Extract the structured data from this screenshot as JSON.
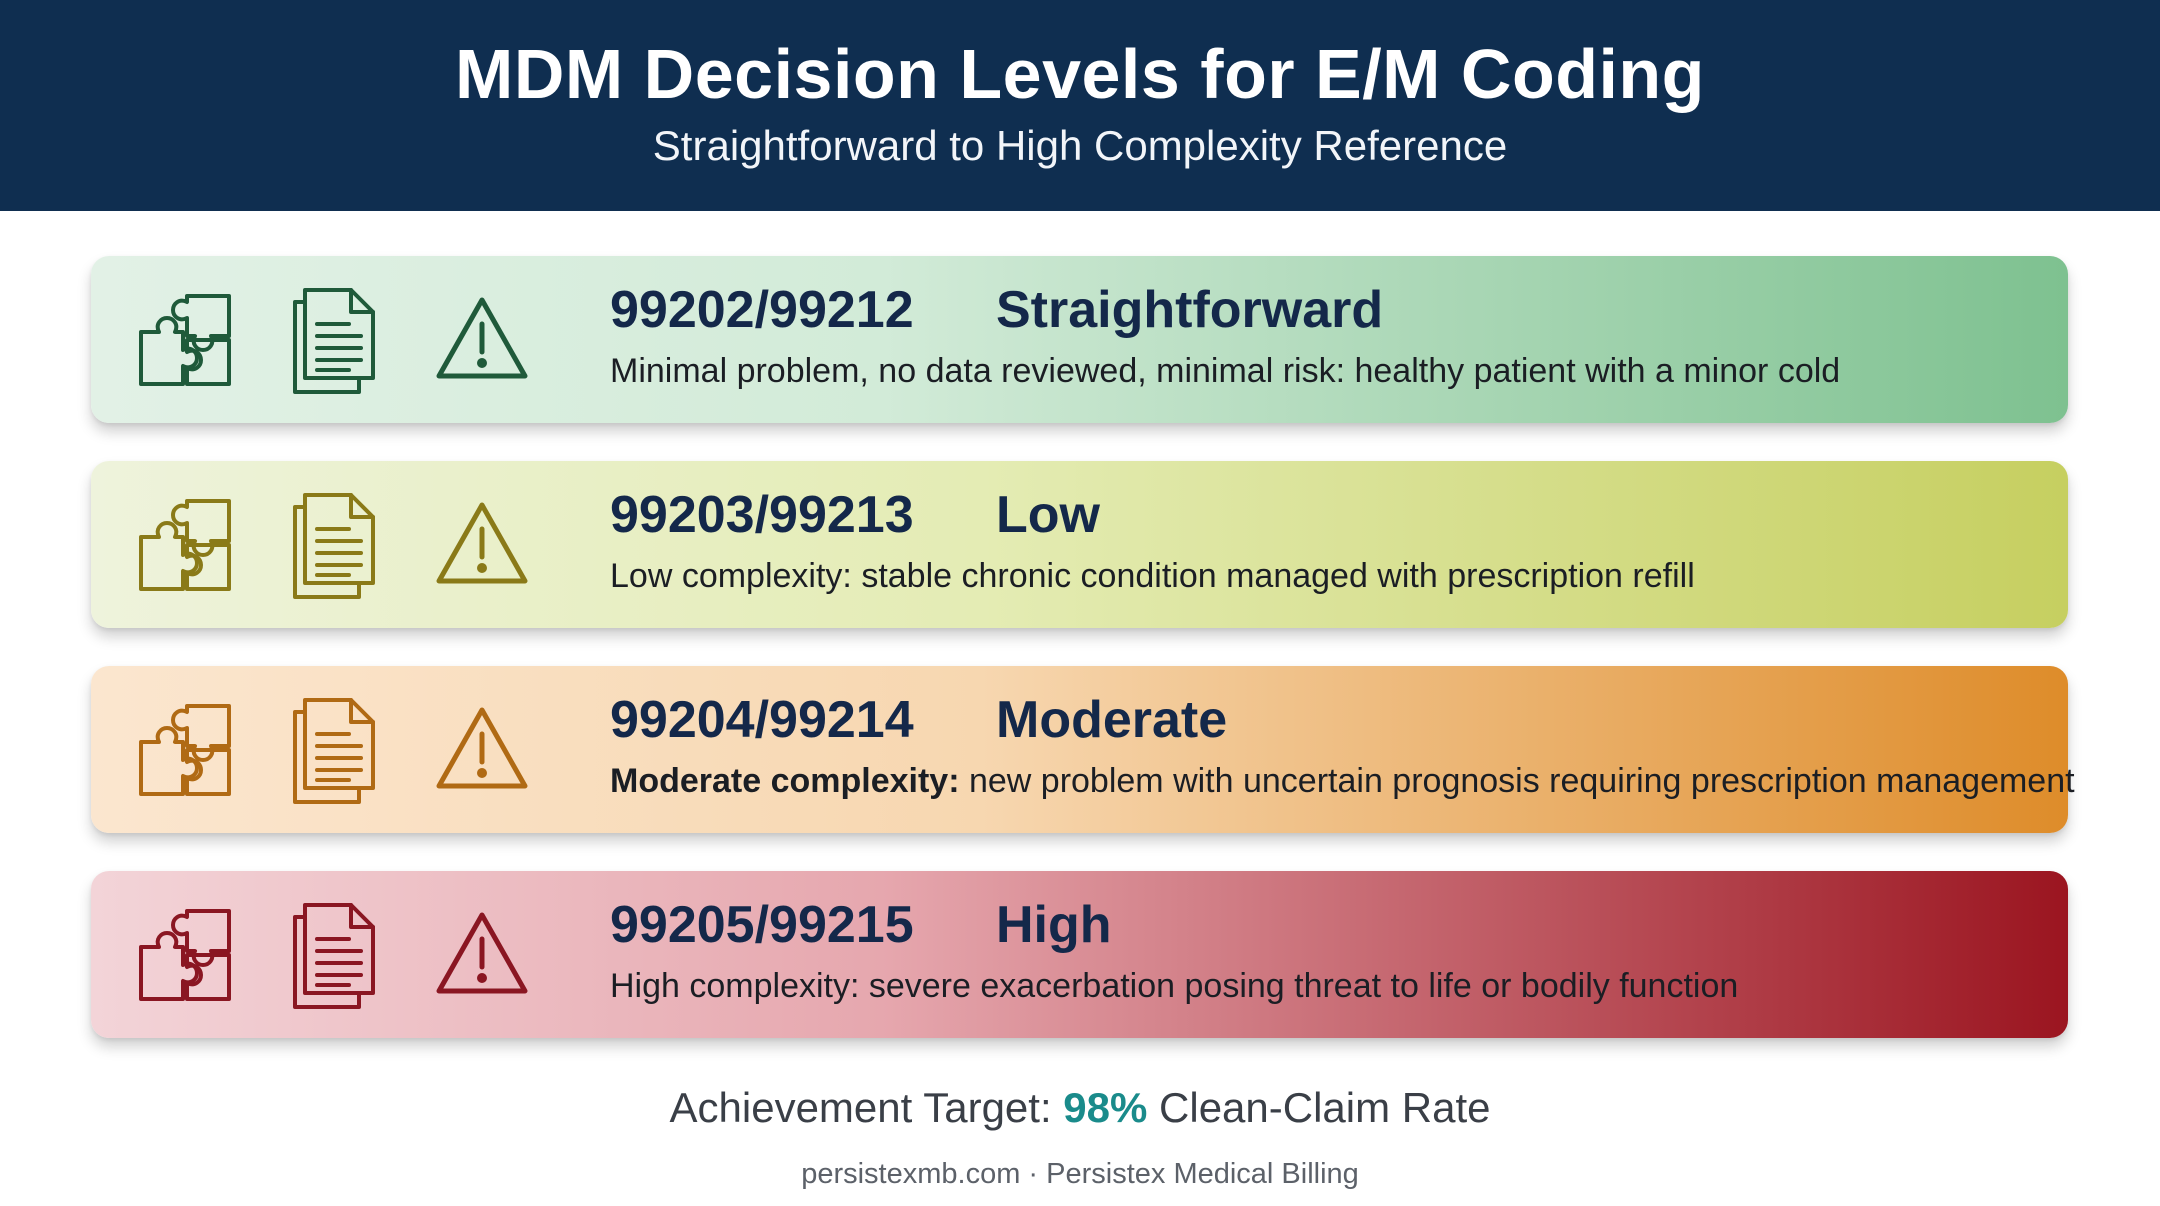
{
  "header": {
    "title": "MDM Decision Levels for E/M Coding",
    "subtitle": "Straightforward to High Complexity Reference"
  },
  "icons": [
    "puzzle-icon",
    "document-icon",
    "warning-icon"
  ],
  "rows": [
    {
      "codes": "99202/99212",
      "level": "Straightforward",
      "desc_bold": "",
      "desc": "Minimal problem, no data reviewed, minimal risk: healthy patient with a minor cold",
      "icon_color": "#1f5a3a"
    },
    {
      "codes": "99203/99213",
      "level": "Low",
      "desc_bold": "",
      "desc": "Low complexity: stable chronic condition managed with prescription refill",
      "icon_color": "#8a7a18"
    },
    {
      "codes": "99204/99214",
      "level": "Moderate",
      "desc_bold": "Moderate complexity:",
      "desc": " new problem with uncertain prognosis requiring prescription management",
      "icon_color": "#b06a14"
    },
    {
      "codes": "99205/99215",
      "level": "High",
      "desc_bold": "",
      "desc": "High complexity: severe exacerbation posing threat to life or bodily function",
      "icon_color": "#8a1622"
    }
  ],
  "target": {
    "prefix": "Achievement Target: ",
    "value": "98%",
    "suffix": " Clean-Claim Rate"
  },
  "footer": {
    "text": "persistexmb.com · Persistex Medical Billing"
  }
}
